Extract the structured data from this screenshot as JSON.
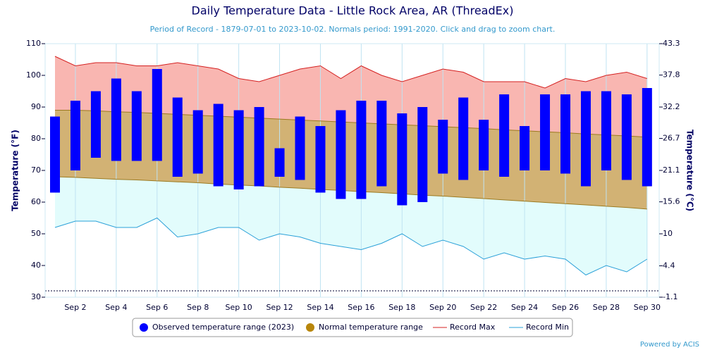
{
  "chart_data": {
    "type": "range",
    "title": "Daily Temperature Data - Little Rock Area, AR (ThreadEx)",
    "subtitle": "Period of Record - 1879-07-01 to 2023-10-02. Normals period: 1991-2020. Click and drag to zoom chart.",
    "ylabel": "Temperature (°F)",
    "y2label": "Temperature (°C)",
    "credit": "Powered by ACIS",
    "categories": [
      null,
      "Sep 2",
      null,
      "Sep 4",
      null,
      "Sep 6",
      null,
      "Sep 8",
      null,
      "Sep 10",
      null,
      "Sep 12",
      null,
      "Sep 14",
      null,
      "Sep 16",
      null,
      "Sep 18",
      null,
      "Sep 20",
      null,
      "Sep 22",
      null,
      "Sep 24",
      null,
      "Sep 26",
      null,
      "Sep 28",
      null,
      "Sep 30"
    ],
    "ylim": [
      30,
      110
    ],
    "yticks": [
      30,
      40,
      50,
      60,
      70,
      80,
      90,
      100,
      110
    ],
    "y2lim": [
      -1.1,
      43.3
    ],
    "y2ticks": [
      -1.1,
      4.4,
      10,
      15.6,
      21.1,
      26.7,
      32.2,
      37.8,
      43.3
    ],
    "reference_line": 32,
    "series": [
      {
        "name": "Observed temperature range (2023)",
        "color": "#0000ff",
        "high": [
          87,
          92,
          95,
          99,
          95,
          102,
          93,
          89,
          91,
          89,
          90,
          77,
          87,
          84,
          89,
          92,
          92,
          88,
          90,
          86,
          93,
          86,
          94,
          84,
          94,
          94,
          95,
          95,
          94,
          96
        ],
        "low": [
          63,
          70,
          74,
          73,
          73,
          73,
          68,
          69,
          65,
          64,
          65,
          68,
          67,
          63,
          61,
          61,
          65,
          59,
          60,
          69,
          67,
          70,
          68,
          70,
          70,
          69,
          65,
          70,
          67,
          65
        ]
      },
      {
        "name": "Normal temperature range",
        "color": "#b8860b",
        "fill": "#d2b274",
        "high": [
          89,
          89,
          88.8,
          88.5,
          88.3,
          88,
          87.7,
          87.4,
          87.1,
          86.8,
          86.5,
          86.2,
          85.9,
          85.6,
          85.3,
          85,
          84.7,
          84.4,
          84.1,
          83.8,
          83.5,
          83.2,
          82.8,
          82.5,
          82.2,
          81.9,
          81.5,
          81.2,
          80.9,
          80.5
        ],
        "low": [
          68,
          67.8,
          67.5,
          67.2,
          67,
          66.7,
          66.4,
          66.1,
          65.7,
          65.4,
          65.1,
          64.7,
          64.4,
          64,
          63.7,
          63.3,
          63,
          62.6,
          62.2,
          61.9,
          61.5,
          61.1,
          60.7,
          60.3,
          59.9,
          59.5,
          59.1,
          58.7,
          58.3,
          57.8
        ]
      },
      {
        "name": "Record Max",
        "color": "#d42020",
        "fill": "#f9b6b1",
        "values": [
          106,
          103,
          104,
          104,
          103,
          103,
          104,
          103,
          102,
          99,
          98,
          100,
          102,
          103,
          99,
          103,
          100,
          98,
          100,
          102,
          101,
          98,
          98,
          98,
          96,
          99,
          98,
          100,
          101,
          99
        ]
      },
      {
        "name": "Record Min",
        "color": "#2aa0d8",
        "fill": "#e2fcfc",
        "values": [
          52,
          54,
          54,
          52,
          52,
          55,
          49,
          50,
          52,
          52,
          48,
          50,
          49,
          47,
          46,
          45,
          47,
          50,
          46,
          48,
          46,
          42,
          44,
          42,
          43,
          42,
          37,
          40,
          38,
          42
        ]
      }
    ]
  }
}
